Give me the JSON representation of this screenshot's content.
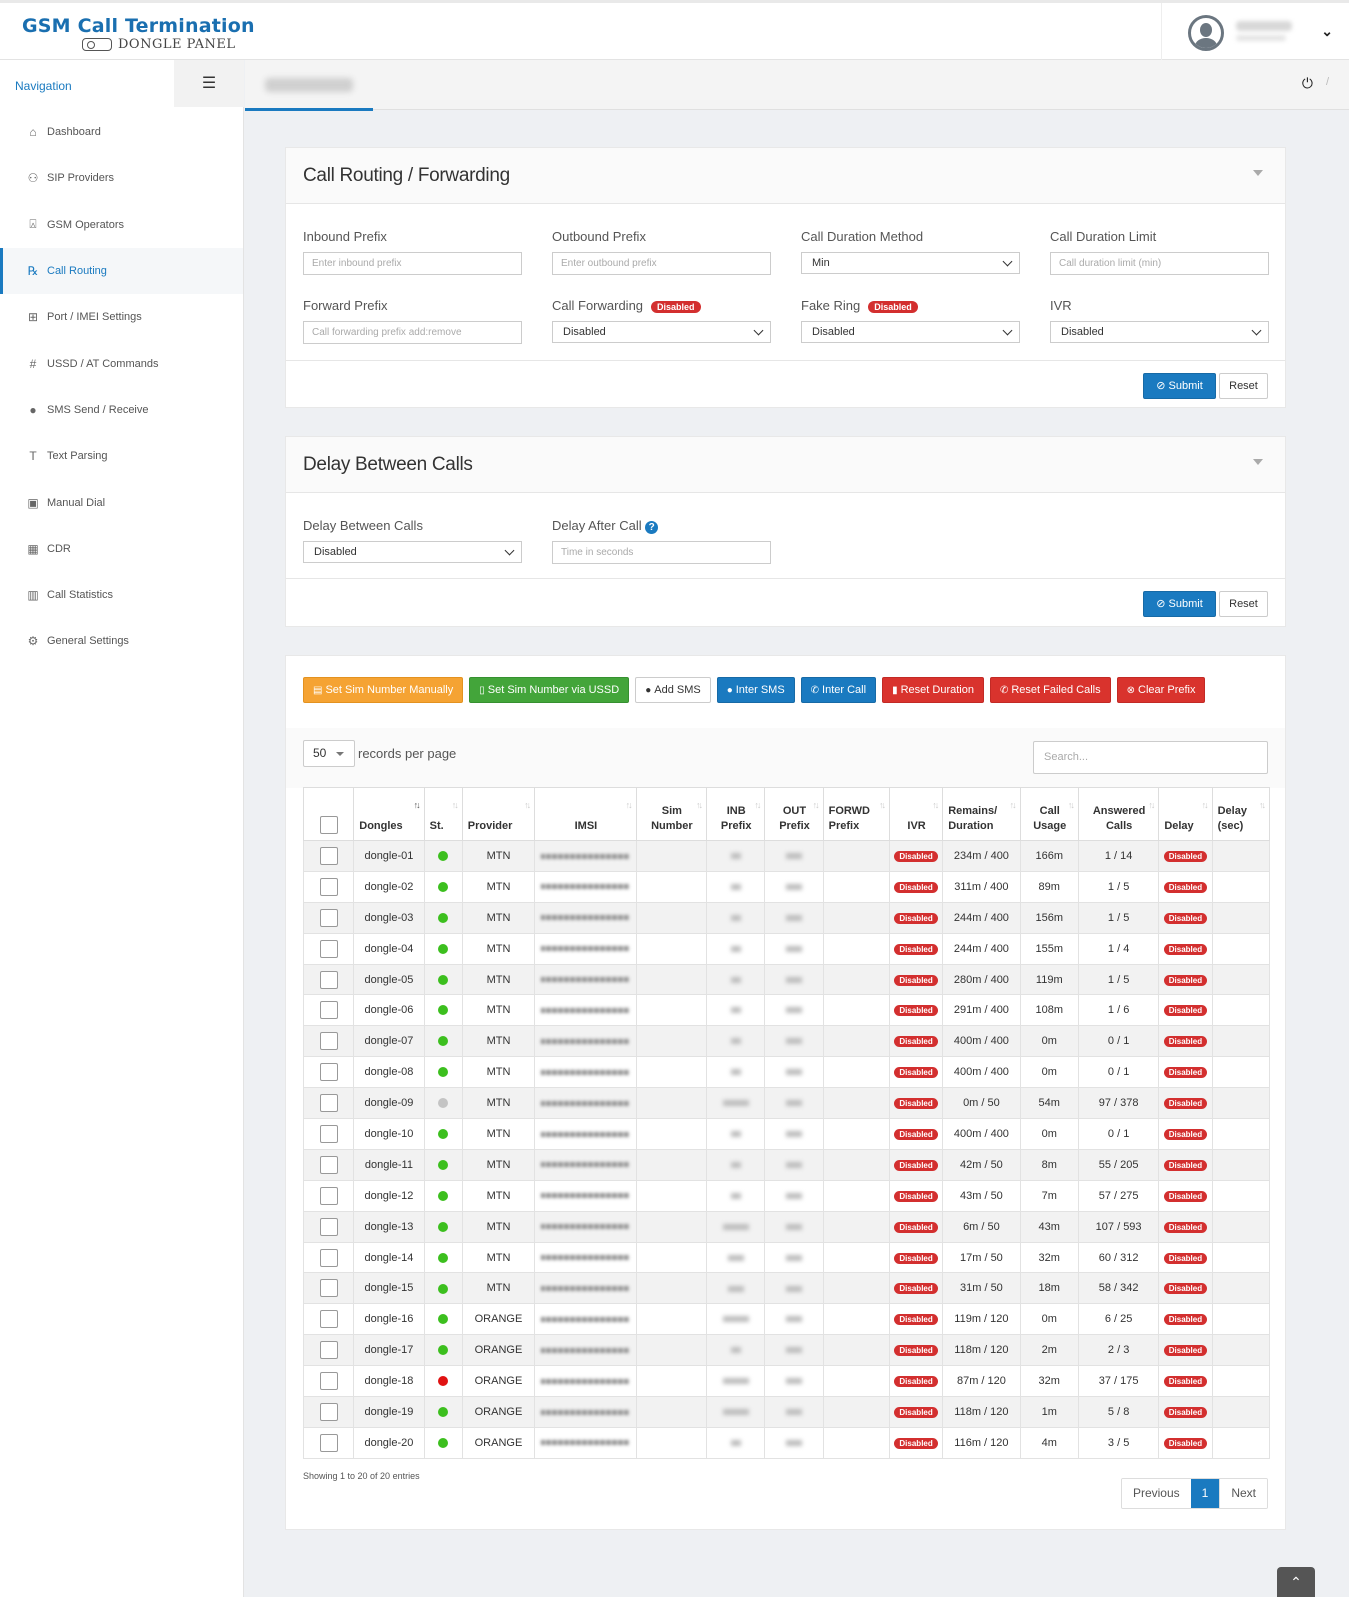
{
  "app": {
    "title": "GSM Call Termination",
    "subtitle": "DONGLE PANEL"
  },
  "sidebar": {
    "title": "Navigation",
    "items": [
      {
        "label": "Dashboard",
        "icon": "home-icon",
        "glyph": "⌂"
      },
      {
        "label": "SIP Providers",
        "icon": "sitemap-icon",
        "glyph": "⚇"
      },
      {
        "label": "GSM Operators",
        "icon": "antenna-icon",
        "glyph": "⍓"
      },
      {
        "label": "Call Routing",
        "icon": "prescription-icon",
        "glyph": "℞",
        "active": true
      },
      {
        "label": "Port / IMEI Settings",
        "icon": "network-icon",
        "glyph": "⊞"
      },
      {
        "label": "USSD / AT Commands",
        "icon": "hash-icon",
        "glyph": "#"
      },
      {
        "label": "SMS Send / Receive",
        "icon": "chat-icon",
        "glyph": "●"
      },
      {
        "label": "Text Parsing",
        "icon": "text-icon",
        "glyph": "T"
      },
      {
        "label": "Manual Dial",
        "icon": "dial-icon",
        "glyph": "▣"
      },
      {
        "label": "CDR",
        "icon": "table-icon",
        "glyph": "▦"
      },
      {
        "label": "Call Statistics",
        "icon": "bar-chart-icon",
        "glyph": "▥"
      },
      {
        "label": "General Settings",
        "icon": "gears-icon",
        "glyph": "⚙"
      }
    ]
  },
  "routing": {
    "title": "Call Routing / Forwarding",
    "inbound_label": "Inbound Prefix",
    "inbound_placeholder": "Enter inbound prefix",
    "outbound_label": "Outbound Prefix",
    "outbound_placeholder": "Enter outbound prefix",
    "method_label": "Call Duration Method",
    "method_value": "Min",
    "limit_label": "Call Duration Limit",
    "limit_placeholder": "Call duration limit (min)",
    "forward_label": "Forward Prefix",
    "forward_placeholder": "Call forwarding prefix   add:remove",
    "callfwd_label": "Call Forwarding",
    "callfwd_badge": "Disabled",
    "callfwd_value": "Disabled",
    "fakering_label": "Fake Ring",
    "fakering_badge": "Disabled",
    "fakering_value": "Disabled",
    "ivr_label": "IVR",
    "ivr_value": "Disabled",
    "submit": "Submit",
    "reset": "Reset"
  },
  "delay": {
    "title": "Delay Between Calls",
    "between_label": "Delay Between Calls",
    "between_value": "Disabled",
    "after_label": "Delay After Call",
    "after_placeholder": "Time in seconds",
    "submit": "Submit",
    "reset": "Reset"
  },
  "actions": [
    {
      "label": "Set Sim Number Manually",
      "style": "a-orange",
      "icon": "doc-icon",
      "glyph": "▤"
    },
    {
      "label": "Set Sim Number via USSD",
      "style": "a-green",
      "icon": "mobile-icon",
      "glyph": "▯"
    },
    {
      "label": "Add SMS",
      "style": "a-white",
      "icon": "comment-icon",
      "glyph": "●"
    },
    {
      "label": "Inter SMS",
      "style": "a-blue",
      "icon": "comments-icon",
      "glyph": "●"
    },
    {
      "label": "Inter Call",
      "style": "a-blue",
      "icon": "phone-icon",
      "glyph": "✆"
    },
    {
      "label": "Reset Duration",
      "style": "a-red",
      "icon": "trash-icon",
      "glyph": "▮"
    },
    {
      "label": "Reset Failed Calls",
      "style": "a-red",
      "icon": "phone-slash-icon",
      "glyph": "✆"
    },
    {
      "label": "Clear Prefix",
      "style": "a-red",
      "icon": "times-circle-icon",
      "glyph": "⊗"
    }
  ],
  "table": {
    "page_length": "50",
    "records_text": "records per page",
    "search_placeholder": "Search...",
    "headers": [
      [
        "Dongles"
      ],
      [
        "St."
      ],
      [
        "Provider"
      ],
      [
        "IMSI"
      ],
      [
        "Sim",
        "Number"
      ],
      [
        "INB",
        "Prefix"
      ],
      [
        "OUT",
        "Prefix"
      ],
      [
        "FORWD",
        "Prefix"
      ],
      [
        "IVR"
      ],
      [
        "Remains/",
        "Duration"
      ],
      [
        "Call",
        "Usage"
      ],
      [
        "Answered",
        "Calls"
      ],
      [
        "Delay"
      ],
      [
        "Delay",
        "(sec)"
      ]
    ],
    "disabled_label": "Disabled",
    "rows": [
      {
        "name": "dongle-01",
        "status": "green",
        "provider": "MTN",
        "remains": "234m / 400",
        "usage": "166m",
        "answered": "1 / 14",
        "inb": "s"
      },
      {
        "name": "dongle-02",
        "status": "green",
        "provider": "MTN",
        "remains": "311m / 400",
        "usage": "89m",
        "answered": "1 / 5",
        "inb": "s"
      },
      {
        "name": "dongle-03",
        "status": "green",
        "provider": "MTN",
        "remains": "244m / 400",
        "usage": "156m",
        "answered": "1 / 5",
        "inb": "s"
      },
      {
        "name": "dongle-04",
        "status": "green",
        "provider": "MTN",
        "remains": "244m / 400",
        "usage": "155m",
        "answered": "1 / 4",
        "inb": "s"
      },
      {
        "name": "dongle-05",
        "status": "green",
        "provider": "MTN",
        "remains": "280m / 400",
        "usage": "119m",
        "answered": "1 / 5",
        "inb": "s"
      },
      {
        "name": "dongle-06",
        "status": "green",
        "provider": "MTN",
        "remains": "291m / 400",
        "usage": "108m",
        "answered": "1 / 6",
        "inb": "s"
      },
      {
        "name": "dongle-07",
        "status": "green",
        "provider": "MTN",
        "remains": "400m / 400",
        "usage": "0m",
        "answered": "0 / 1",
        "inb": "s"
      },
      {
        "name": "dongle-08",
        "status": "green",
        "provider": "MTN",
        "remains": "400m / 400",
        "usage": "0m",
        "answered": "0 / 1",
        "inb": "s"
      },
      {
        "name": "dongle-09",
        "status": "gray",
        "provider": "MTN",
        "remains": "0m / 50",
        "usage": "54m",
        "answered": "97 / 378",
        "inb": "w"
      },
      {
        "name": "dongle-10",
        "status": "green",
        "provider": "MTN",
        "remains": "400m / 400",
        "usage": "0m",
        "answered": "0 / 1",
        "inb": "s"
      },
      {
        "name": "dongle-11",
        "status": "green",
        "provider": "MTN",
        "remains": "42m / 50",
        "usage": "8m",
        "answered": "55 / 205",
        "inb": "s"
      },
      {
        "name": "dongle-12",
        "status": "green",
        "provider": "MTN",
        "remains": "43m / 50",
        "usage": "7m",
        "answered": "57 / 275",
        "inb": "s"
      },
      {
        "name": "dongle-13",
        "status": "green",
        "provider": "MTN",
        "remains": "6m / 50",
        "usage": "43m",
        "answered": "107 / 593",
        "inb": "w"
      },
      {
        "name": "dongle-14",
        "status": "green",
        "provider": "MTN",
        "remains": "17m / 50",
        "usage": "32m",
        "answered": "60 / 312",
        "inb": "m"
      },
      {
        "name": "dongle-15",
        "status": "green",
        "provider": "MTN",
        "remains": "31m / 50",
        "usage": "18m",
        "answered": "58 / 342",
        "inb": "m"
      },
      {
        "name": "dongle-16",
        "status": "green",
        "provider": "ORANGE",
        "remains": "119m / 120",
        "usage": "0m",
        "answered": "6 / 25",
        "inb": "w"
      },
      {
        "name": "dongle-17",
        "status": "green",
        "provider": "ORANGE",
        "remains": "118m / 120",
        "usage": "2m",
        "answered": "2 / 3",
        "inb": "s"
      },
      {
        "name": "dongle-18",
        "status": "red",
        "provider": "ORANGE",
        "remains": "87m / 120",
        "usage": "32m",
        "answered": "37 / 175",
        "inb": "w"
      },
      {
        "name": "dongle-19",
        "status": "green",
        "provider": "ORANGE",
        "remains": "118m / 120",
        "usage": "1m",
        "answered": "5 / 8",
        "inb": "w"
      },
      {
        "name": "dongle-20",
        "status": "green",
        "provider": "ORANGE",
        "remains": "116m / 120",
        "usage": "4m",
        "answered": "3 / 5",
        "inb": "s"
      }
    ],
    "showing": "Showing 1 to 20 of 20 entries",
    "prev": "Previous",
    "page": "1",
    "next": "Next"
  }
}
